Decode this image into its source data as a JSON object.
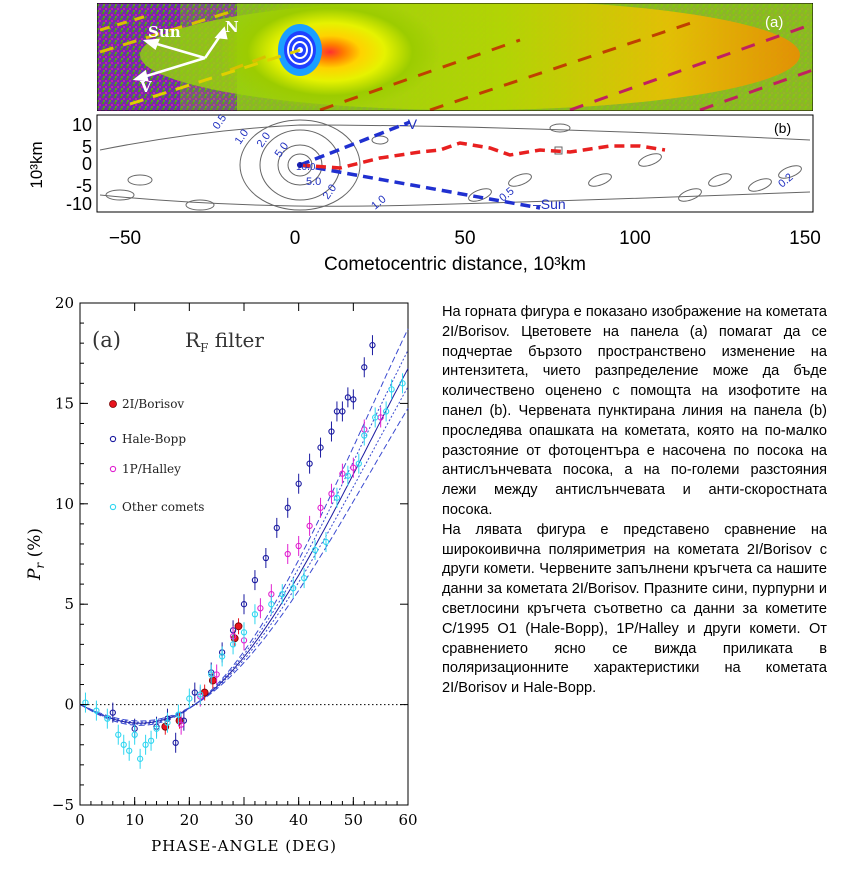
{
  "panel_a": {
    "label": "(a)",
    "sun_label": "Sun",
    "north_label": "N",
    "velocity_label": "V"
  },
  "panel_b": {
    "label": "(b)",
    "y_unit_label": "10³km",
    "y_ticks": [
      "10",
      "5",
      "0",
      "-5",
      "-10"
    ],
    "x_ticks": [
      "−50",
      "0",
      "50",
      "100",
      "150"
    ],
    "x_label": "Cometocentric distance, 10³km",
    "v_label": "–V",
    "sun_label": "–Sun",
    "contour_labels": [
      "0.5",
      "1.0",
      "2.0",
      "5.0",
      "10.0",
      "5.0",
      "2.0",
      "1.0",
      "0.5",
      "0.2"
    ]
  },
  "chart_data": {
    "type": "scatter",
    "panel_label": "(a)",
    "filter_label": "R",
    "filter_subscript": "F",
    "filter_suffix": "filter",
    "xlabel": "PHASE-ANGLE (DEG)",
    "ylabel": "P",
    "ylabel_subscript": "r",
    "ylabel_suffix": "(%)",
    "xlim": [
      0,
      60
    ],
    "ylim": [
      -5,
      20
    ],
    "xticks": [
      0,
      10,
      20,
      30,
      40,
      50,
      60
    ],
    "yticks": [
      -5,
      0,
      5,
      10,
      15,
      20
    ],
    "legend_position": "upper-left",
    "series": [
      {
        "name": "2I/Borisov",
        "color": "#e8141e",
        "marker": "filled-circle",
        "x": [
          15.6,
          18.2,
          22.8,
          24.3,
          28.3,
          29.0
        ],
        "y": [
          -1.1,
          -0.8,
          0.6,
          1.2,
          3.3,
          3.9
        ]
      },
      {
        "name": "Hale-Bopp",
        "color": "#1a1aa0",
        "marker": "open-circle",
        "x": [
          6,
          10,
          14,
          16,
          17.5,
          19,
          21,
          24,
          26,
          28,
          30,
          32,
          34,
          36,
          38,
          40,
          42,
          44,
          46,
          47,
          48,
          49,
          50,
          52,
          53.5
        ],
        "y": [
          -0.4,
          -1.2,
          -1.1,
          -0.7,
          -1.9,
          -0.8,
          0.6,
          1.6,
          2.6,
          3.7,
          5.0,
          6.2,
          7.3,
          8.8,
          9.8,
          11.0,
          12.0,
          12.8,
          13.6,
          14.6,
          14.6,
          15.3,
          15.2,
          16.8,
          17.9
        ]
      },
      {
        "name": "1P/Halley",
        "color": "#e020d0",
        "marker": "open-circle",
        "x": [
          18.5,
          22,
          25,
          28,
          30,
          33,
          35,
          38,
          40,
          42,
          44,
          46,
          48,
          50,
          52,
          55
        ],
        "y": [
          -1.0,
          0.4,
          1.5,
          3.4,
          3.2,
          4.8,
          5.5,
          7.5,
          7.9,
          8.9,
          9.8,
          10.5,
          11.5,
          11.8,
          13.7,
          14.3
        ]
      },
      {
        "name": "Other comets",
        "color": "#2fd6f0",
        "marker": "open-circle",
        "x": [
          1,
          3,
          5,
          7,
          8,
          9,
          10,
          11,
          12,
          13,
          14,
          16,
          18,
          20,
          22,
          24,
          26,
          28,
          30,
          32,
          35,
          37,
          39,
          41,
          43,
          45,
          47,
          49,
          51,
          52,
          54,
          56,
          57,
          59
        ],
        "y": [
          0.1,
          -0.3,
          -0.7,
          -1.5,
          -2.0,
          -2.3,
          -1.5,
          -2.7,
          -2.0,
          -1.8,
          -1.2,
          -0.9,
          -0.5,
          0.3,
          0.5,
          1.5,
          2.4,
          3.0,
          3.6,
          4.5,
          5.0,
          5.5,
          5.8,
          6.3,
          7.7,
          8.1,
          10.3,
          11.4,
          12.0,
          13.4,
          14.3,
          14.6,
          15.7,
          16.0
        ]
      }
    ]
  },
  "text": {
    "paragraph_1": "На горната фигура е показано изображение на кометата 2I/Borisov. Цветовете на панела (a) помагат да се подчертае бързото пространствено изменение на интензитета, чието разпределение може да бъде количествено оценено с помощта на изофотите на панел (b). Червената пунктирана линия на панела (b) проследява опашката на кометата, която на по-малко разстояние от фотоцентъра е насочена по посока на антислънчевата посока, а на по-големи разстояния лежи между антислънчевата и анти-скоростната посока.",
    "paragraph_2": "На лявата фигура е представено сравнение на широкоивична поляриметрия на кометата 2I/Borisov с други комети. Червените запълнени кръгчета са нашите данни за кометата 2I/Borisov. Празните сини, пурпурни и светлосини кръгчета съответно са данни за кометите C/1995 O1 (Hale-Bopp), 1P/Halley и други комети. От сравнението ясно се вижда приликата в поляризационните характеристики на кометата 2I/Borisov и Hale-Bopp."
  }
}
